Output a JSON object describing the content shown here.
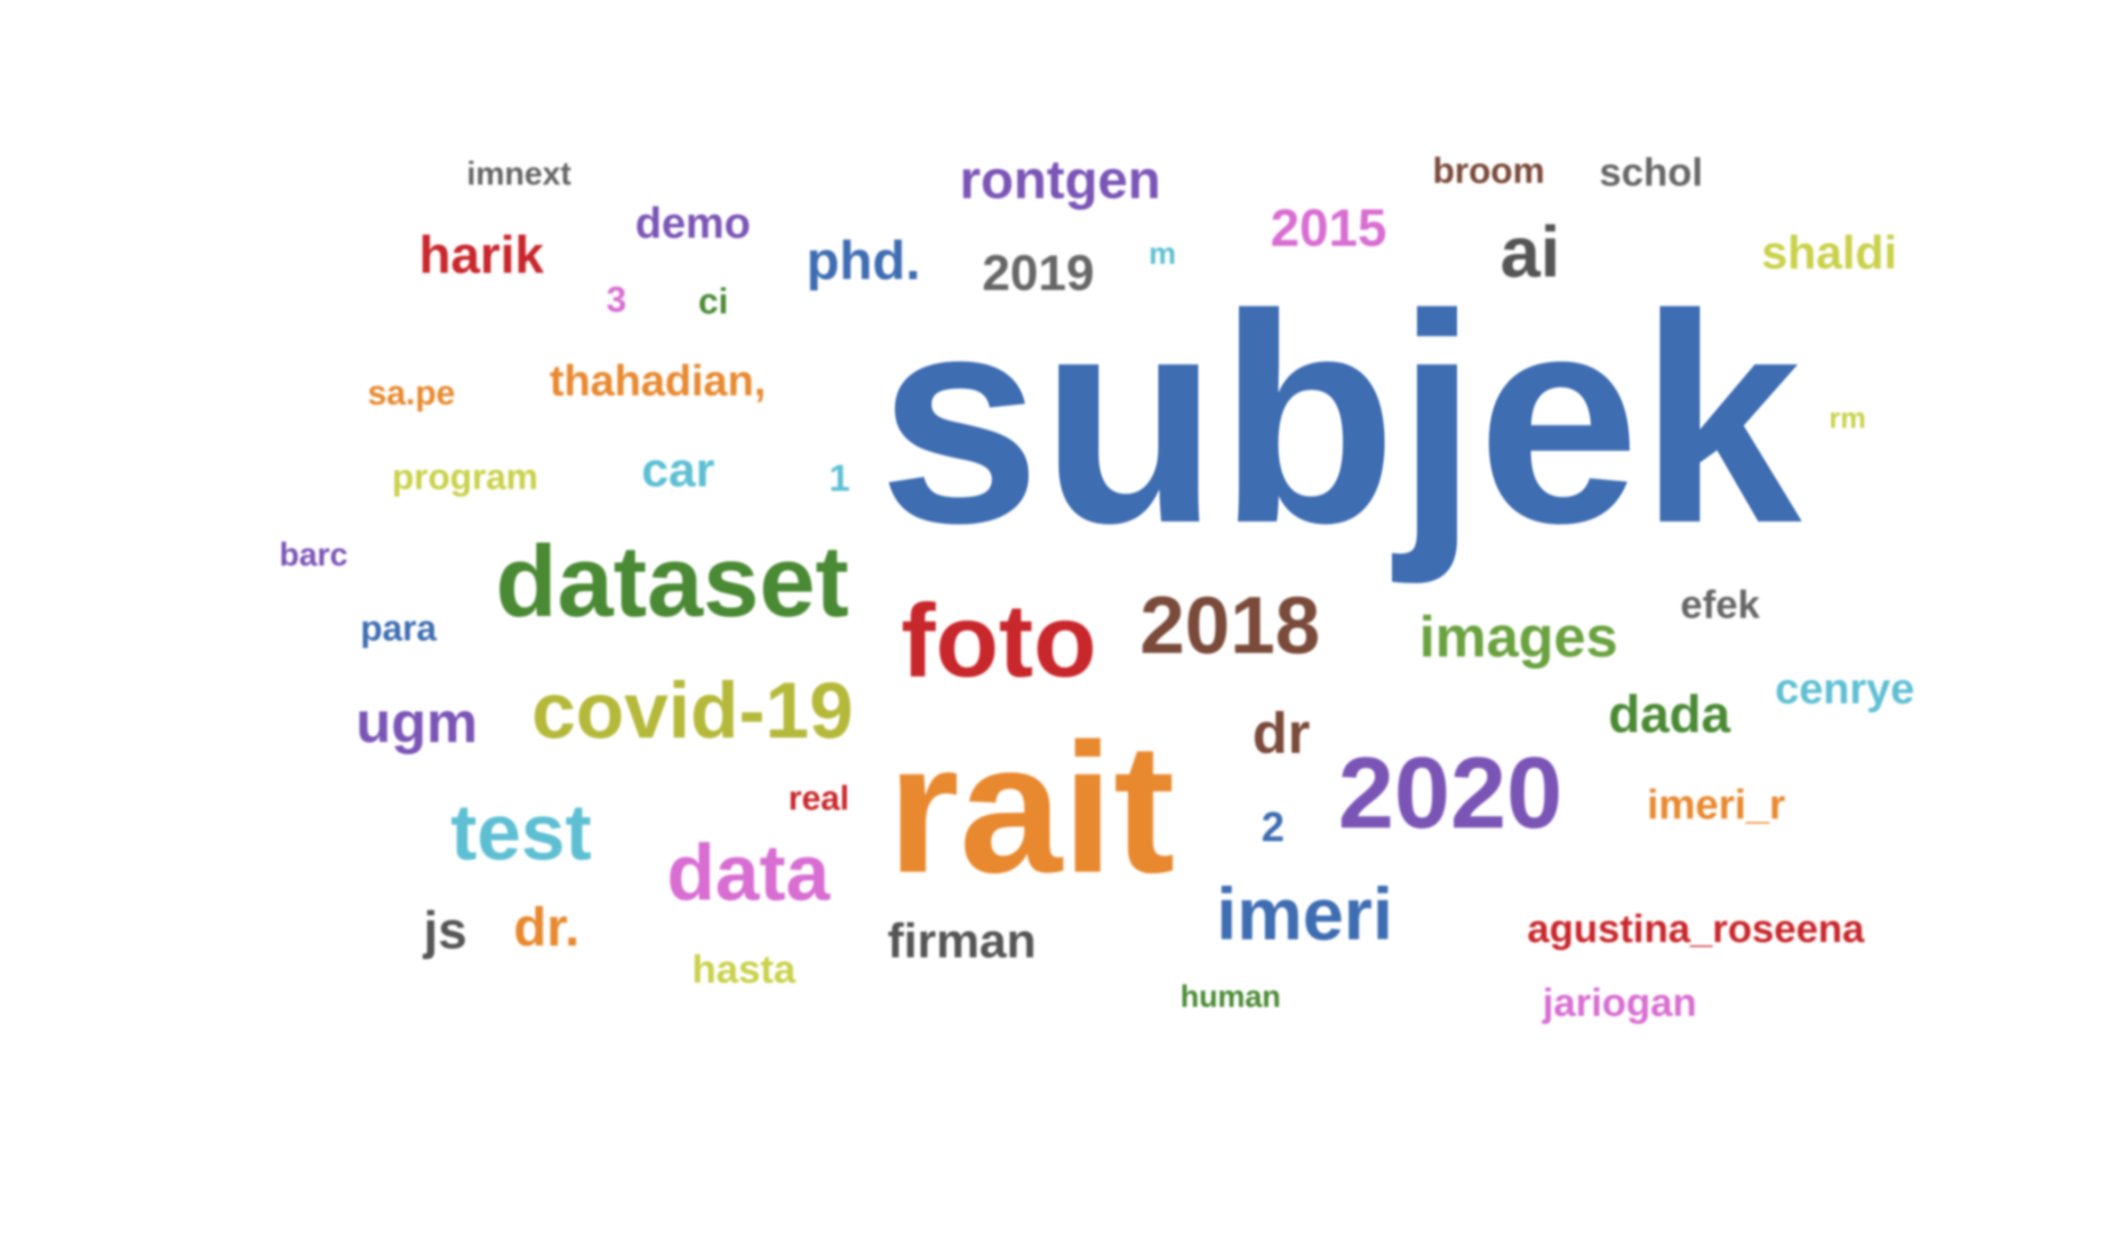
{
  "words": [
    {
      "text": "subjek",
      "color": "#3e6db2"
    },
    {
      "text": "rait",
      "color": "#e8892f"
    },
    {
      "text": "dataset",
      "color": "#4a8a34"
    },
    {
      "text": "foto",
      "color": "#c8272c"
    },
    {
      "text": "2018",
      "color": "#7a4a3a"
    },
    {
      "text": "2020",
      "color": "#7b55b6"
    },
    {
      "text": "covid-19",
      "color": "#b5b93a"
    },
    {
      "text": "data",
      "color": "#d86ed2"
    },
    {
      "text": "test",
      "color": "#5ebfd3"
    },
    {
      "text": "imeri",
      "color": "#3e6db2"
    },
    {
      "text": "images",
      "color": "#6aa23f"
    },
    {
      "text": "ugm",
      "color": "#7b55b6"
    },
    {
      "text": "rontgen",
      "color": "#7b55b6"
    },
    {
      "text": "harik",
      "color": "#c8272c"
    },
    {
      "text": "demo",
      "color": "#7b55b6"
    },
    {
      "text": "phd.",
      "color": "#3e6db2"
    },
    {
      "text": "2019",
      "color": "#666666"
    },
    {
      "text": "2015",
      "color": "#d86ed2"
    },
    {
      "text": "ai",
      "color": "#555555"
    },
    {
      "text": "shaldi",
      "color": "#c9d14a"
    },
    {
      "text": "imnext",
      "color": "#666666"
    },
    {
      "text": "broom",
      "color": "#7a4a3a"
    },
    {
      "text": "schol",
      "color": "#666666"
    },
    {
      "text": "thahadian,",
      "color": "#e8892f"
    },
    {
      "text": "sa.pe",
      "color": "#e8892f"
    },
    {
      "text": "program",
      "color": "#c9d14a"
    },
    {
      "text": "car",
      "color": "#5ebfd3"
    },
    {
      "text": "barc",
      "color": "#7b55b6"
    },
    {
      "text": "para",
      "color": "#3e6db2"
    },
    {
      "text": "dr",
      "color": "#7a4a3a"
    },
    {
      "text": "dada",
      "color": "#4a8a34"
    },
    {
      "text": "cenrye",
      "color": "#5ebfd3"
    },
    {
      "text": "efek",
      "color": "#666666"
    },
    {
      "text": "imeri_r",
      "color": "#e8892f"
    },
    {
      "text": "agustina_roseena",
      "color": "#c8272c"
    },
    {
      "text": "jariogan",
      "color": "#d86ed2"
    },
    {
      "text": "firman",
      "color": "#555555"
    },
    {
      "text": "hasta",
      "color": "#c9d14a"
    },
    {
      "text": "js",
      "color": "#555555"
    },
    {
      "text": "dr.",
      "color": "#e8892f"
    },
    {
      "text": "human",
      "color": "#4a8a34"
    },
    {
      "text": "real",
      "color": "#c8272c"
    },
    {
      "text": "2",
      "color": "#3e6db2"
    },
    {
      "text": "3",
      "color": "#d86ed2"
    },
    {
      "text": "ci",
      "color": "#4a8a34"
    },
    {
      "text": "1",
      "color": "#5ebfd3"
    },
    {
      "text": "m",
      "color": "#5ebfd3"
    },
    {
      "text": "rm",
      "color": "#c9d14a"
    }
  ]
}
